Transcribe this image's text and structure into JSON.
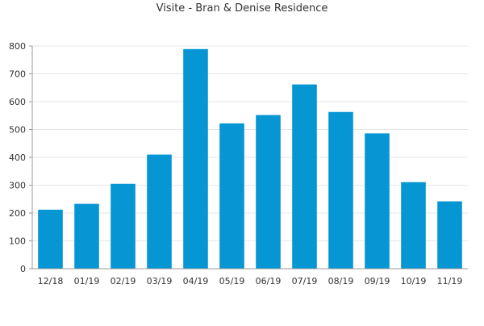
{
  "chart_data": {
    "type": "bar",
    "title": "Visite - Bran & Denise Residence",
    "xlabel": "",
    "ylabel": "",
    "categories": [
      "12/18",
      "01/19",
      "02/19",
      "03/19",
      "04/19",
      "05/19",
      "06/19",
      "07/19",
      "08/19",
      "09/19",
      "10/19",
      "11/19"
    ],
    "values": [
      212,
      233,
      305,
      410,
      789,
      522,
      552,
      662,
      563,
      486,
      311,
      242
    ],
    "ylim": [
      0,
      800
    ],
    "yticks": [
      0,
      100,
      200,
      300,
      400,
      500,
      600,
      700,
      800
    ],
    "grid": true,
    "legend": "none",
    "bar_color": "#0796d4",
    "grid_color": "#e6e6e6",
    "axis_color": "#999999"
  }
}
